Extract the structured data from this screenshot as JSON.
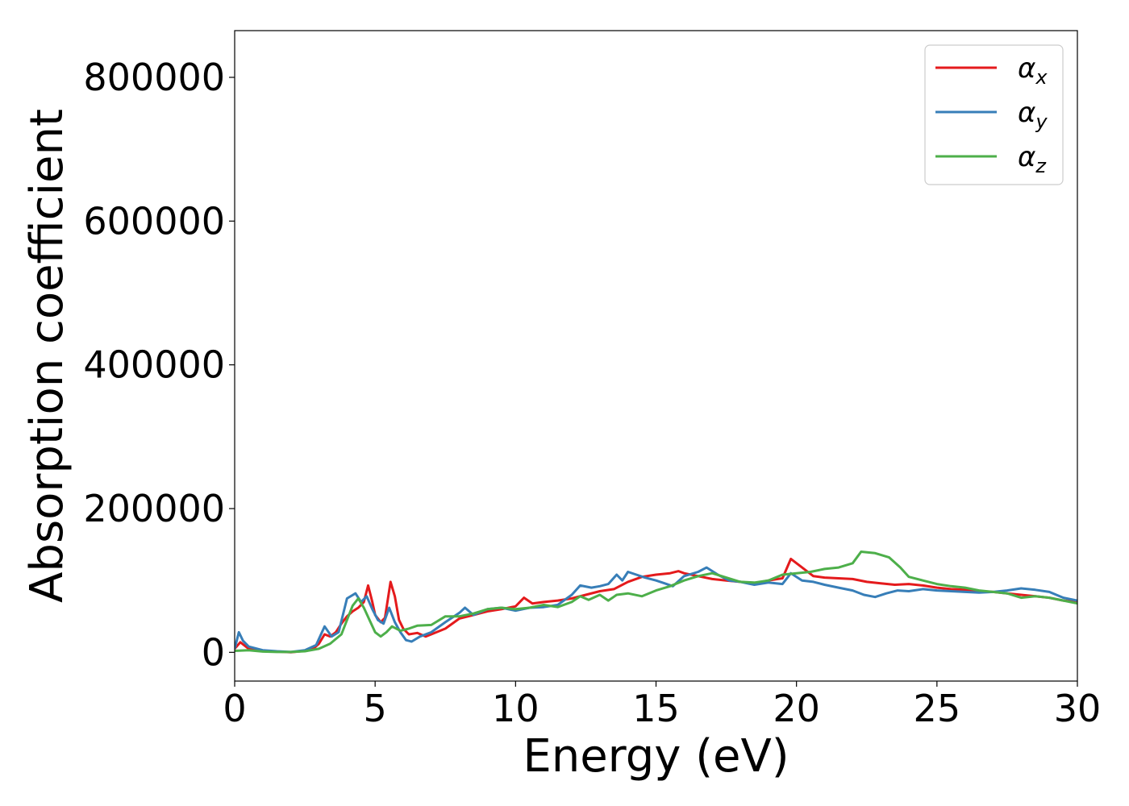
{
  "chart_data": {
    "type": "line",
    "title": "",
    "xlabel": "Energy (eV)",
    "ylabel": "Absorption coefficient",
    "xlim": [
      0,
      30
    ],
    "ylim": [
      -40000,
      865000
    ],
    "xticks": [
      0,
      5,
      10,
      15,
      20,
      25,
      30
    ],
    "xtick_labels": [
      "0",
      "5",
      "10",
      "15",
      "20",
      "25",
      "30"
    ],
    "yticks": [
      0,
      200000,
      400000,
      600000,
      800000
    ],
    "ytick_labels": [
      "0",
      "200000",
      "400000",
      "600000",
      "800000"
    ],
    "grid": false,
    "legend": {
      "placement": "top-right",
      "entries": [
        {
          "symbol": "α",
          "sub": "x",
          "color": "#e41a1c"
        },
        {
          "symbol": "α",
          "sub": "y",
          "color": "#377eb8"
        },
        {
          "symbol": "α",
          "sub": "z",
          "color": "#4daf4a"
        }
      ]
    },
    "series": [
      {
        "name": "αx",
        "color": "#e41a1c",
        "points": [
          [
            0,
            5000
          ],
          [
            0.2,
            14000
          ],
          [
            0.5,
            5000
          ],
          [
            1.0,
            2000
          ],
          [
            1.5,
            1000
          ],
          [
            2.0,
            0
          ],
          [
            2.5,
            2000
          ],
          [
            2.8,
            5000
          ],
          [
            3.0,
            12000
          ],
          [
            3.2,
            25000
          ],
          [
            3.4,
            22000
          ],
          [
            3.6,
            28000
          ],
          [
            3.8,
            40000
          ],
          [
            4.0,
            50000
          ],
          [
            4.2,
            57000
          ],
          [
            4.4,
            62000
          ],
          [
            4.6,
            70000
          ],
          [
            4.75,
            93000
          ],
          [
            4.9,
            70000
          ],
          [
            5.0,
            52000
          ],
          [
            5.2,
            42000
          ],
          [
            5.35,
            48000
          ],
          [
            5.55,
            98000
          ],
          [
            5.7,
            78000
          ],
          [
            5.85,
            45000
          ],
          [
            6.0,
            33000
          ],
          [
            6.2,
            25000
          ],
          [
            6.5,
            27000
          ],
          [
            6.8,
            22000
          ],
          [
            7.0,
            25000
          ],
          [
            7.5,
            33000
          ],
          [
            8.0,
            47000
          ],
          [
            8.5,
            52000
          ],
          [
            9.0,
            57000
          ],
          [
            9.5,
            60000
          ],
          [
            10.0,
            64000
          ],
          [
            10.3,
            76000
          ],
          [
            10.6,
            68000
          ],
          [
            11.0,
            70000
          ],
          [
            11.5,
            72000
          ],
          [
            12.0,
            75000
          ],
          [
            12.5,
            80000
          ],
          [
            13.0,
            85000
          ],
          [
            13.5,
            88000
          ],
          [
            14.0,
            98000
          ],
          [
            14.5,
            105000
          ],
          [
            15.0,
            108000
          ],
          [
            15.5,
            110000
          ],
          [
            15.8,
            113000
          ],
          [
            16.0,
            110000
          ],
          [
            16.5,
            106000
          ],
          [
            17.0,
            102000
          ],
          [
            17.5,
            100000
          ],
          [
            18.0,
            98000
          ],
          [
            18.5,
            96000
          ],
          [
            19.0,
            100000
          ],
          [
            19.5,
            103000
          ],
          [
            19.8,
            130000
          ],
          [
            20.2,
            118000
          ],
          [
            20.6,
            106000
          ],
          [
            21.0,
            104000
          ],
          [
            21.5,
            103000
          ],
          [
            22.0,
            102000
          ],
          [
            22.5,
            98000
          ],
          [
            23.0,
            96000
          ],
          [
            23.5,
            94000
          ],
          [
            24.0,
            95000
          ],
          [
            24.5,
            93000
          ],
          [
            25.0,
            90000
          ],
          [
            25.5,
            88000
          ],
          [
            26.0,
            87000
          ],
          [
            26.5,
            85000
          ],
          [
            27.0,
            84000
          ],
          [
            27.5,
            82000
          ],
          [
            28.0,
            80000
          ],
          [
            28.5,
            78000
          ],
          [
            29.0,
            76000
          ],
          [
            29.5,
            72000
          ],
          [
            30.0,
            70000
          ]
        ]
      },
      {
        "name": "αy",
        "color": "#377eb8",
        "points": [
          [
            0,
            5000
          ],
          [
            0.15,
            28000
          ],
          [
            0.3,
            16000
          ],
          [
            0.5,
            8000
          ],
          [
            1.0,
            3000
          ],
          [
            1.5,
            1500
          ],
          [
            2.0,
            500
          ],
          [
            2.5,
            3000
          ],
          [
            2.9,
            10000
          ],
          [
            3.2,
            36000
          ],
          [
            3.45,
            22000
          ],
          [
            3.7,
            28000
          ],
          [
            4.0,
            75000
          ],
          [
            4.3,
            82000
          ],
          [
            4.5,
            70000
          ],
          [
            4.7,
            78000
          ],
          [
            4.9,
            60000
          ],
          [
            5.1,
            45000
          ],
          [
            5.3,
            40000
          ],
          [
            5.5,
            62000
          ],
          [
            5.7,
            42000
          ],
          [
            5.9,
            28000
          ],
          [
            6.1,
            17000
          ],
          [
            6.3,
            15000
          ],
          [
            6.6,
            22000
          ],
          [
            7.0,
            28000
          ],
          [
            7.5,
            42000
          ],
          [
            8.0,
            55000
          ],
          [
            8.2,
            62000
          ],
          [
            8.5,
            52000
          ],
          [
            9.0,
            60000
          ],
          [
            9.5,
            62000
          ],
          [
            10.0,
            58000
          ],
          [
            10.5,
            62000
          ],
          [
            11.0,
            63000
          ],
          [
            11.5,
            66000
          ],
          [
            12.0,
            80000
          ],
          [
            12.3,
            93000
          ],
          [
            12.7,
            90000
          ],
          [
            13.0,
            92000
          ],
          [
            13.3,
            95000
          ],
          [
            13.6,
            108000
          ],
          [
            13.8,
            100000
          ],
          [
            14.0,
            112000
          ],
          [
            14.3,
            108000
          ],
          [
            14.6,
            104000
          ],
          [
            15.0,
            100000
          ],
          [
            15.3,
            96000
          ],
          [
            15.6,
            92000
          ],
          [
            16.0,
            106000
          ],
          [
            16.5,
            112000
          ],
          [
            16.8,
            118000
          ],
          [
            17.2,
            108000
          ],
          [
            17.6,
            100000
          ],
          [
            18.0,
            98000
          ],
          [
            18.5,
            94000
          ],
          [
            19.0,
            97000
          ],
          [
            19.5,
            95000
          ],
          [
            19.8,
            110000
          ],
          [
            20.2,
            100000
          ],
          [
            20.6,
            98000
          ],
          [
            21.0,
            94000
          ],
          [
            21.5,
            90000
          ],
          [
            22.0,
            86000
          ],
          [
            22.4,
            80000
          ],
          [
            22.8,
            77000
          ],
          [
            23.2,
            82000
          ],
          [
            23.6,
            86000
          ],
          [
            24.0,
            85000
          ],
          [
            24.5,
            88000
          ],
          [
            25.0,
            86000
          ],
          [
            25.5,
            85000
          ],
          [
            26.0,
            84000
          ],
          [
            26.5,
            83000
          ],
          [
            27.0,
            84000
          ],
          [
            27.5,
            86000
          ],
          [
            28.0,
            89000
          ],
          [
            28.5,
            87000
          ],
          [
            29.0,
            84000
          ],
          [
            29.5,
            76000
          ],
          [
            30.0,
            72000
          ]
        ]
      },
      {
        "name": "αz",
        "color": "#4daf4a",
        "points": [
          [
            0,
            2000
          ],
          [
            0.5,
            3000
          ],
          [
            1.0,
            1000
          ],
          [
            1.5,
            500
          ],
          [
            2.0,
            500
          ],
          [
            2.5,
            1500
          ],
          [
            3.0,
            5000
          ],
          [
            3.4,
            12000
          ],
          [
            3.8,
            25000
          ],
          [
            4.0,
            45000
          ],
          [
            4.2,
            65000
          ],
          [
            4.4,
            75000
          ],
          [
            4.6,
            62000
          ],
          [
            4.8,
            45000
          ],
          [
            5.0,
            28000
          ],
          [
            5.2,
            22000
          ],
          [
            5.4,
            28000
          ],
          [
            5.6,
            36000
          ],
          [
            5.9,
            30000
          ],
          [
            6.2,
            33000
          ],
          [
            6.5,
            37000
          ],
          [
            7.0,
            38000
          ],
          [
            7.5,
            50000
          ],
          [
            8.0,
            50000
          ],
          [
            8.5,
            54000
          ],
          [
            9.0,
            60000
          ],
          [
            9.5,
            62000
          ],
          [
            10.0,
            60000
          ],
          [
            10.5,
            62000
          ],
          [
            11.0,
            66000
          ],
          [
            11.5,
            63000
          ],
          [
            12.0,
            70000
          ],
          [
            12.3,
            78000
          ],
          [
            12.6,
            73000
          ],
          [
            13.0,
            80000
          ],
          [
            13.3,
            72000
          ],
          [
            13.6,
            80000
          ],
          [
            14.0,
            82000
          ],
          [
            14.5,
            78000
          ],
          [
            15.0,
            86000
          ],
          [
            15.5,
            92000
          ],
          [
            16.0,
            100000
          ],
          [
            16.5,
            106000
          ],
          [
            17.0,
            110000
          ],
          [
            17.5,
            104000
          ],
          [
            18.0,
            98000
          ],
          [
            18.5,
            97000
          ],
          [
            19.0,
            100000
          ],
          [
            19.5,
            108000
          ],
          [
            20.0,
            110000
          ],
          [
            20.5,
            112000
          ],
          [
            21.0,
            116000
          ],
          [
            21.5,
            118000
          ],
          [
            22.0,
            124000
          ],
          [
            22.3,
            140000
          ],
          [
            22.8,
            138000
          ],
          [
            23.3,
            132000
          ],
          [
            23.7,
            118000
          ],
          [
            24.0,
            105000
          ],
          [
            24.5,
            100000
          ],
          [
            25.0,
            95000
          ],
          [
            25.5,
            92000
          ],
          [
            26.0,
            90000
          ],
          [
            26.5,
            86000
          ],
          [
            27.0,
            84000
          ],
          [
            27.5,
            82000
          ],
          [
            28.0,
            76000
          ],
          [
            28.5,
            78000
          ],
          [
            29.0,
            76000
          ],
          [
            29.5,
            72000
          ],
          [
            30.0,
            68000
          ]
        ]
      }
    ]
  }
}
